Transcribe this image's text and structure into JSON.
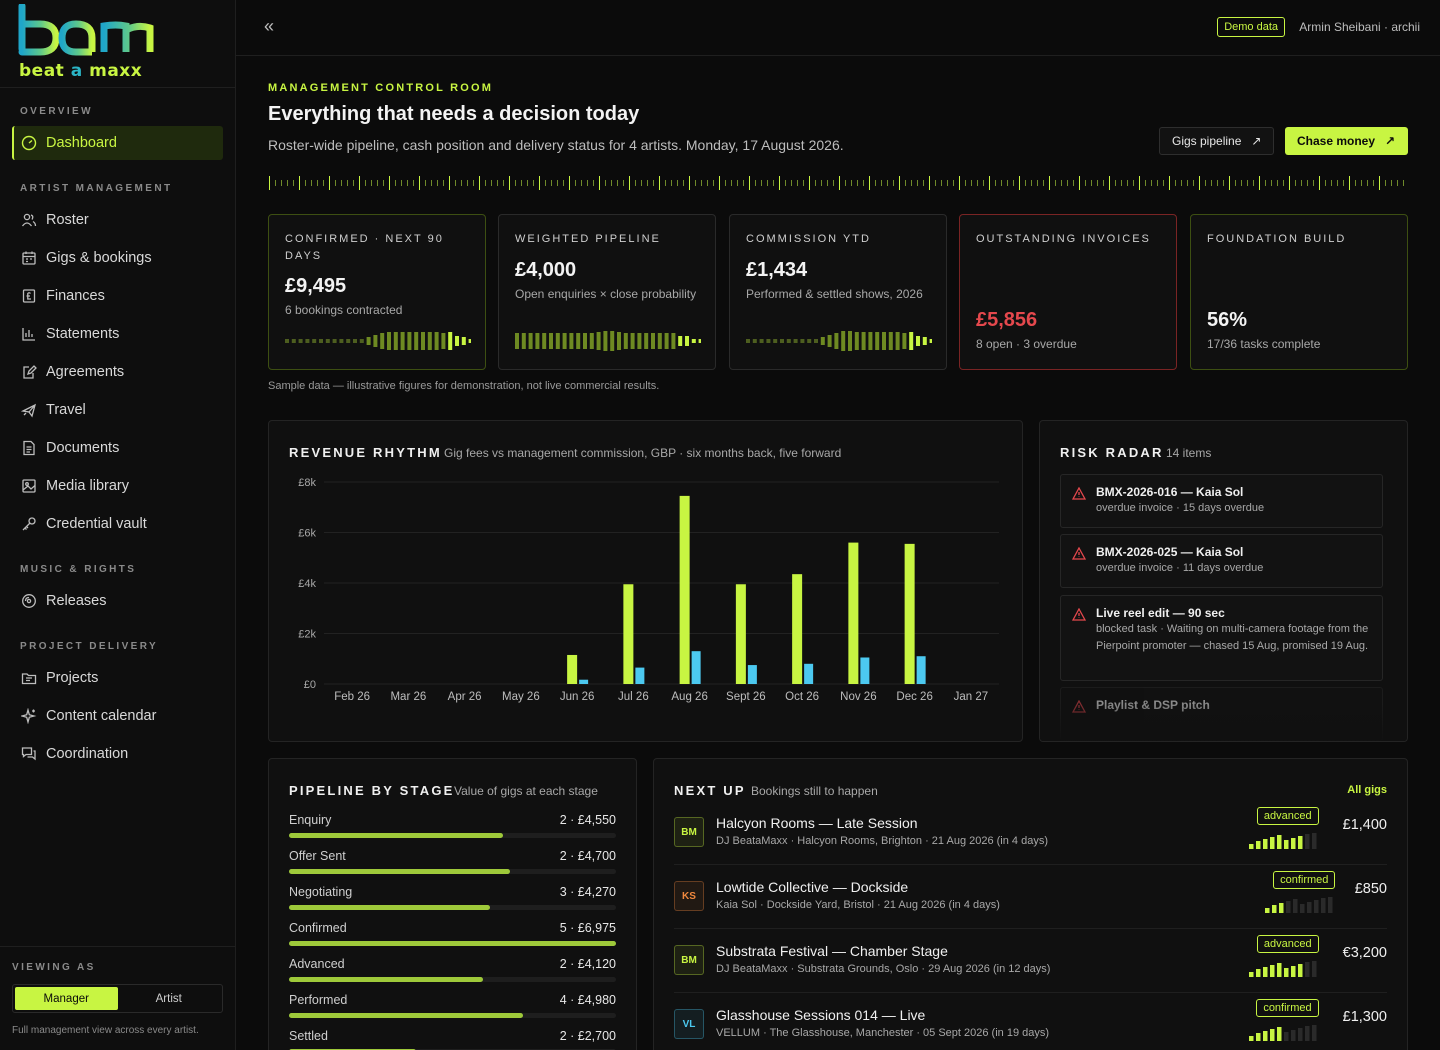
{
  "brand": {
    "logo_text": "bam",
    "tagline_a": "beat",
    "tagline_b": "a",
    "tagline_c": "maxx",
    "accent": "#c8f542",
    "logo_teal": "#2bb5c6"
  },
  "sidebar": {
    "sections": [
      {
        "label": "OVERVIEW",
        "items": [
          {
            "label": "Dashboard",
            "icon": "gauge-icon",
            "active": true
          }
        ]
      },
      {
        "label": "ARTIST MANAGEMENT",
        "items": [
          {
            "label": "Roster",
            "icon": "users-icon"
          },
          {
            "label": "Gigs & bookings",
            "icon": "calendar-icon"
          },
          {
            "label": "Finances",
            "icon": "pound-icon"
          },
          {
            "label": "Statements",
            "icon": "bar-chart-icon"
          },
          {
            "label": "Agreements",
            "icon": "edit-icon"
          },
          {
            "label": "Travel",
            "icon": "plane-icon"
          },
          {
            "label": "Documents",
            "icon": "document-icon"
          },
          {
            "label": "Media library",
            "icon": "image-icon"
          },
          {
            "label": "Credential vault",
            "icon": "key-icon"
          }
        ]
      },
      {
        "label": "MUSIC & RIGHTS",
        "items": [
          {
            "label": "Releases",
            "icon": "disc-icon"
          }
        ]
      },
      {
        "label": "PROJECT DELIVERY",
        "items": [
          {
            "label": "Projects",
            "icon": "folder-icon"
          },
          {
            "label": "Content calendar",
            "icon": "sparkle-icon"
          },
          {
            "label": "Coordination",
            "icon": "chat-icon"
          }
        ]
      }
    ],
    "viewing_label": "VIEWING AS",
    "viewing_options": [
      "Manager",
      "Artist"
    ],
    "viewing_note": "Full management view across every artist."
  },
  "topbar": {
    "collapse_icon": "double-chevron-left-icon",
    "demo_badge": "Demo data",
    "user": "Armin Sheibani · archii"
  },
  "header": {
    "eyebrow": "MANAGEMENT CONTROL ROOM",
    "title": "Everything that needs a decision today",
    "subtitle": "Roster-wide pipeline, cash position and delivery status for 4 artists. Monday, 17 August 2026.",
    "btn_pipeline": "Gigs pipeline",
    "btn_chase": "Chase money"
  },
  "kpis": [
    {
      "label": "CONFIRMED · NEXT 90 DAYS",
      "value": "£9,495",
      "note": "6 bookings contracted"
    },
    {
      "label": "WEIGHTED PIPELINE",
      "value": "£4,000",
      "note": "Open enquiries × close probability"
    },
    {
      "label": "COMMISSION YTD",
      "value": "£1,434",
      "note": "Performed & settled shows, 2026"
    },
    {
      "label": "OUTSTANDING INVOICES",
      "value": "£5,856",
      "note": "8 open · 3 overdue",
      "color": "#e5484d"
    },
    {
      "label": "FOUNDATION BUILD",
      "value": "56%",
      "note": "17/36 tasks complete"
    }
  ],
  "sample_note": "Sample data — illustrative figures for demonstration, not live commercial results.",
  "revenue": {
    "title": "REVENUE RHYTHM",
    "subtitle": "Gig fees vs management commission, GBP · six months back, five forward",
    "y_ticks": [
      "£8k",
      "£6k",
      "£4k",
      "£2k",
      "£0"
    ]
  },
  "chart_data": {
    "type": "bar",
    "categories": [
      "Feb 26",
      "Mar 26",
      "Apr 26",
      "May 26",
      "Jun 26",
      "Jul 26",
      "Aug 26",
      "Sept 26",
      "Oct 26",
      "Nov 26",
      "Dec 26",
      "Jan 27"
    ],
    "series": [
      {
        "name": "",
        "color": "#c8f542",
        "values": [
          0,
          0,
          0,
          0,
          1150,
          3950,
          7450,
          3950,
          4350,
          5600,
          5550,
          0
        ]
      },
      {
        "name": "",
        "color": "#4cc9f0",
        "values": [
          0,
          0,
          0,
          0,
          170,
          650,
          1300,
          750,
          800,
          1050,
          1100,
          0
        ]
      }
    ],
    "ylim": [
      0,
      8000
    ],
    "title": "REVENUE RHYTHM",
    "xlabel": "",
    "ylabel": ""
  },
  "risk": {
    "title": "RISK RADAR",
    "count": "14 items",
    "items": [
      {
        "title": "BMX-2026-016 — Kaia Sol",
        "desc": "overdue invoice · 15 days overdue"
      },
      {
        "title": "BMX-2026-025 — Kaia Sol",
        "desc": "overdue invoice · 11 days overdue"
      },
      {
        "title": "Live reel edit — 90 sec",
        "desc": "blocked task · Waiting on multi-camera footage from the Pierpoint promoter — chased 15 Aug, promised 19 Aug."
      },
      {
        "title": "Playlist & DSP pitch",
        "desc": ""
      }
    ]
  },
  "pipeline": {
    "title": "PIPELINE BY STAGE",
    "subtitle": "Value of gigs at each stage",
    "stages": [
      {
        "name": "Enquiry",
        "value": "2 · £4,550",
        "fill": 0.655
      },
      {
        "name": "Offer Sent",
        "value": "2 · £4,700",
        "fill": 0.676
      },
      {
        "name": "Negotiating",
        "value": "3 · £4,270",
        "fill": 0.615
      },
      {
        "name": "Confirmed",
        "value": "5 · £6,975",
        "fill": 1.0
      },
      {
        "name": "Advanced",
        "value": "2 · £4,120",
        "fill": 0.593
      },
      {
        "name": "Performed",
        "value": "4 · £4,980",
        "fill": 0.716
      },
      {
        "name": "Settled",
        "value": "2 · £2,700",
        "fill": 0.388
      }
    ]
  },
  "next_up": {
    "title": "NEXT UP",
    "subtitle": "Bookings still to happen",
    "link": "All gigs",
    "gigs": [
      {
        "initials": "BM",
        "title": "Halcyon Rooms — Late Session",
        "meta": "DJ BeataMaxx · Halcyon Rooms, Brighton · 21 Aug 2026 (in 4 days)",
        "status": "advanced",
        "amount": "£1,400",
        "level": 0.8,
        "ic_color": "#c8f542"
      },
      {
        "initials": "KS",
        "title": "Lowtide Collective — Dockside",
        "meta": "Kaia Sol · Dockside Yard, Bristol · 21 Aug 2026 (in 4 days)",
        "status": "confirmed",
        "amount": "£850",
        "level": 0.3,
        "ic_color": "#f0883e"
      },
      {
        "initials": "BM",
        "title": "Substrata Festival — Chamber Stage",
        "meta": "DJ BeataMaxx · Substrata Grounds, Oslo · 29 Aug 2026 (in 12 days)",
        "status": "advanced",
        "amount": "€3,200",
        "level": 0.8,
        "ic_color": "#c8f542"
      },
      {
        "initials": "VL",
        "title": "Glasshouse Sessions 014 — Live",
        "meta": "VELLUM · The Glasshouse, Manchester · 05 Sept 2026 (in 19 days)",
        "status": "confirmed",
        "amount": "£1,300",
        "level": 0.5,
        "ic_color": "#4cc9f0"
      }
    ]
  }
}
